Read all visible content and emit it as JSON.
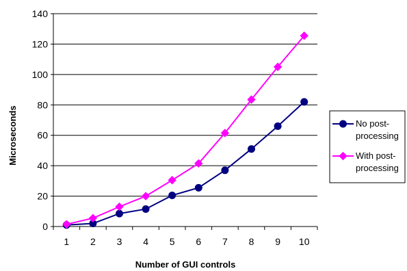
{
  "chart_data": {
    "type": "line",
    "title": "",
    "xlabel": "Number of GUI controls",
    "ylabel": "Microseconds",
    "categories": [
      "1",
      "2",
      "3",
      "4",
      "5",
      "6",
      "7",
      "8",
      "9",
      "10"
    ],
    "ylim": [
      0,
      140
    ],
    "yticks": [
      "0",
      "20",
      "40",
      "60",
      "80",
      "100",
      "120",
      "140"
    ],
    "grid": "horizontal",
    "legend_position": "right",
    "series": [
      {
        "name": "No post-processing",
        "name_lines": [
          "No post-",
          "processing"
        ],
        "color": "#000080",
        "marker": "circle",
        "values": [
          1,
          2,
          8.5,
          11.5,
          20.5,
          25.5,
          37,
          51,
          66,
          82
        ]
      },
      {
        "name": "With post-processing",
        "name_lines": [
          "With post-",
          "processing"
        ],
        "color": "#FF00FF",
        "marker": "diamond",
        "values": [
          1.5,
          5.5,
          13,
          20,
          30.5,
          41.5,
          61.5,
          83.5,
          105,
          125.5
        ]
      }
    ]
  }
}
